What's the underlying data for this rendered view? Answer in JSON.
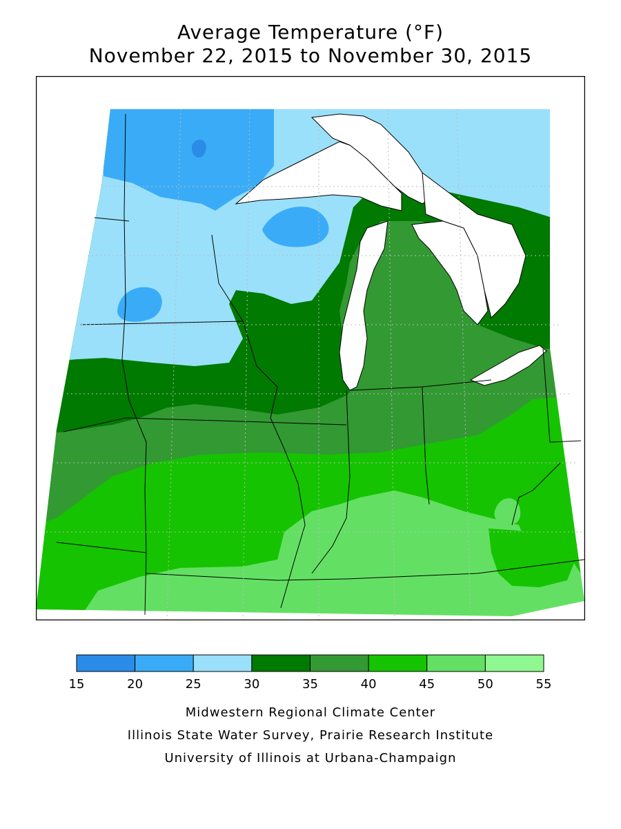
{
  "title": "Average Temperature (°F)",
  "subtitle": "November 22, 2015 to November 30, 2015",
  "legend": {
    "breaks": [
      "15",
      "20",
      "25",
      "30",
      "35",
      "40",
      "45",
      "50",
      "55"
    ],
    "colors": [
      "#2b8ce8",
      "#3aacf7",
      "#9ae0fb",
      "#007a00",
      "#339933",
      "#16c300",
      "#63e063",
      "#90f890"
    ]
  },
  "credits": [
    "Midwestern Regional Climate Center",
    "Illinois State Water Survey, Prairie Research Institute",
    "University of Illinois at Urbana-Champaign"
  ]
}
